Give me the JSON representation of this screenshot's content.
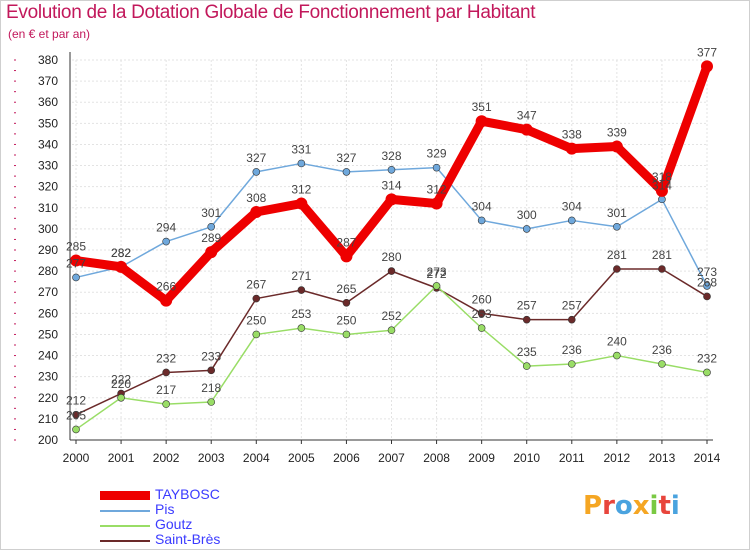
{
  "title": "Evolution de la Dotation Globale de Fonctionnement par Habitant",
  "subtitle": "(en € et par an)",
  "logo": {
    "letters": [
      "P",
      "r",
      "o",
      "x",
      "i",
      "t",
      "i"
    ],
    "colors": [
      "#f5a623",
      "#e8453c",
      "#4aa3df",
      "#f5a623",
      "#7ac943",
      "#e8453c",
      "#4aa3df"
    ]
  },
  "chart_data": {
    "type": "line",
    "title": "Evolution de la Dotation Globale de Fonctionnement par Habitant",
    "subtitle": "(en € et par an)",
    "x": [
      "2000",
      "2001",
      "2002",
      "2003",
      "2004",
      "2005",
      "2006",
      "2007",
      "2008",
      "2009",
      "2010",
      "2011",
      "2012",
      "2013",
      "2014"
    ],
    "ylim": [
      200,
      380
    ],
    "yticks": [
      200,
      210,
      220,
      230,
      240,
      250,
      260,
      270,
      280,
      290,
      300,
      310,
      320,
      330,
      340,
      350,
      360,
      370,
      380
    ],
    "grid": true,
    "legend_position": "bottom-left",
    "series": [
      {
        "name": "TAYBOSC",
        "color": "#ee0000",
        "values": [
          285,
          282,
          266,
          289,
          308,
          312,
          287,
          314,
          312,
          351,
          347,
          338,
          339,
          318,
          377
        ]
      },
      {
        "name": "Pis",
        "color": "#6fa8dc",
        "values": [
          277,
          282,
          294,
          301,
          327,
          331,
          327,
          328,
          329,
          304,
          300,
          304,
          301,
          314,
          273
        ]
      },
      {
        "name": "Goutz",
        "color": "#99dd66",
        "values": [
          205,
          220,
          217,
          218,
          250,
          253,
          250,
          252,
          273,
          253,
          235,
          236,
          240,
          236,
          232
        ]
      },
      {
        "name": "Saint-Brès",
        "color": "#6b2a2a",
        "values": [
          212,
          222,
          232,
          233,
          267,
          271,
          265,
          280,
          272,
          260,
          257,
          257,
          281,
          281,
          268
        ]
      }
    ]
  }
}
